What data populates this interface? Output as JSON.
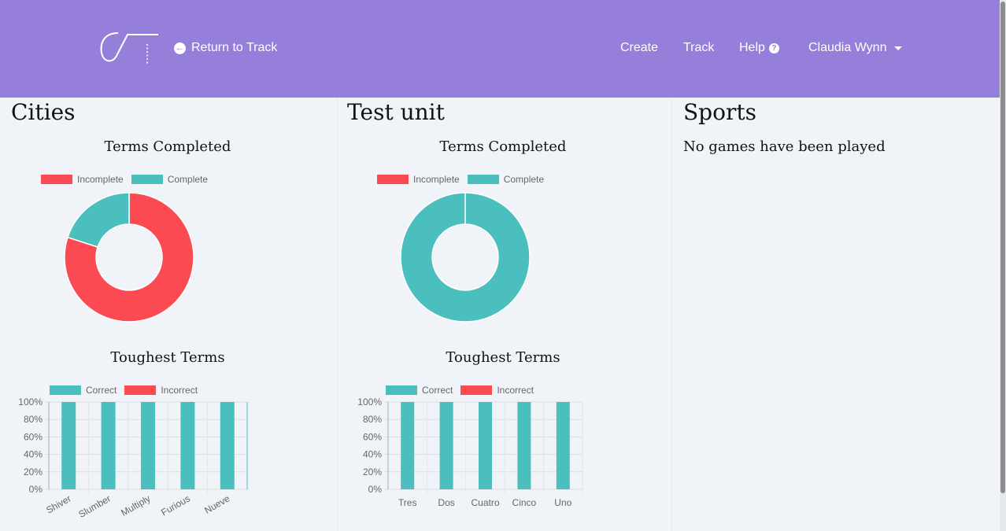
{
  "nav": {
    "return_label": "Return to Track",
    "create": "Create",
    "track": "Track",
    "help": "Help",
    "user": "Claudia Wynn"
  },
  "colors": {
    "navbar": "#967edb",
    "incomplete": "#fb4a51",
    "complete": "#4bbfbd",
    "correct": "#4bbfbd",
    "incorrect": "#fb4a51"
  },
  "columns": [
    {
      "title": "Cities",
      "terms_heading": "Terms Completed",
      "legend_incomplete": "Incomplete",
      "legend_complete": "Complete",
      "tough_heading": "Toughest Terms",
      "legend_correct": "Correct",
      "legend_incorrect": "Incorrect"
    },
    {
      "title": "Test unit",
      "terms_heading": "Terms Completed",
      "legend_incomplete": "Incomplete",
      "legend_complete": "Complete",
      "tough_heading": "Toughest Terms",
      "legend_correct": "Correct",
      "legend_incorrect": "Incorrect"
    },
    {
      "title": "Sports",
      "message": "No games have been played"
    }
  ],
  "chart_data": [
    {
      "type": "pie",
      "variant": "doughnut",
      "categories": [
        "Incomplete",
        "Complete"
      ],
      "values": [
        80,
        20
      ],
      "title": "Terms Completed",
      "legend": "top"
    },
    {
      "type": "bar",
      "stacked": true,
      "categories": [
        "Shiver",
        "Slumber",
        "Multiply",
        "Furious",
        "Nueve"
      ],
      "series": [
        {
          "name": "Correct",
          "values": [
            100,
            100,
            100,
            100,
            100
          ]
        },
        {
          "name": "Incorrect",
          "values": [
            0,
            0,
            0,
            0,
            0
          ]
        }
      ],
      "ylim": [
        0,
        100
      ],
      "yticks": [
        "0%",
        "20%",
        "40%",
        "60%",
        "80%",
        "100%"
      ],
      "title": "Toughest Terms",
      "legend": "top",
      "grid": true
    },
    {
      "type": "pie",
      "variant": "doughnut",
      "categories": [
        "Incomplete",
        "Complete"
      ],
      "values": [
        0,
        100
      ],
      "title": "Terms Completed",
      "legend": "top"
    },
    {
      "type": "bar",
      "stacked": true,
      "categories": [
        "Tres",
        "Dos",
        "Cuatro",
        "Cinco",
        "Uno"
      ],
      "series": [
        {
          "name": "Correct",
          "values": [
            100,
            100,
            100,
            100,
            100
          ]
        },
        {
          "name": "Incorrect",
          "values": [
            0,
            0,
            0,
            0,
            0
          ]
        }
      ],
      "ylim": [
        0,
        100
      ],
      "yticks": [
        "0%",
        "20%",
        "40%",
        "60%",
        "80%",
        "100%"
      ],
      "title": "Toughest Terms",
      "legend": "top",
      "grid": true
    }
  ]
}
